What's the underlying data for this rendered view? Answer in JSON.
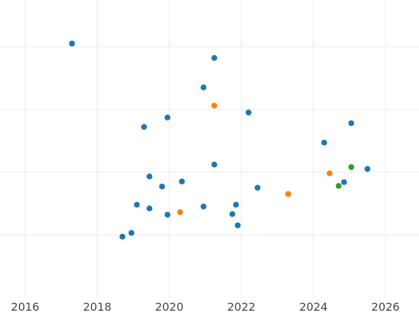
{
  "chart_data": {
    "type": "scatter",
    "title": "",
    "xlabel": "",
    "ylabel": "",
    "x_axis": "date (years)",
    "x_ticks": [
      2016,
      2018,
      2020,
      2022,
      2024,
      2026
    ],
    "xlim": [
      2016.0,
      2026.9
    ],
    "ylim": [
      0,
      4.7
    ],
    "y_gridlines": [
      1,
      2,
      3,
      4
    ],
    "y_tick_labels_shown": false,
    "grid": true,
    "legend": "none",
    "series": [
      {
        "color": "#1f77b4",
        "points": [
          {
            "x": 2017.3,
            "y": 4.05
          },
          {
            "x": 2021.25,
            "y": 3.82
          },
          {
            "x": 2020.95,
            "y": 3.35
          },
          {
            "x": 2022.2,
            "y": 2.95
          },
          {
            "x": 2019.95,
            "y": 2.87
          },
          {
            "x": 2019.3,
            "y": 2.72
          },
          {
            "x": 2025.05,
            "y": 2.78
          },
          {
            "x": 2024.3,
            "y": 2.47
          },
          {
            "x": 2021.25,
            "y": 2.12
          },
          {
            "x": 2025.5,
            "y": 2.05
          },
          {
            "x": 2019.45,
            "y": 1.93
          },
          {
            "x": 2020.35,
            "y": 1.85
          },
          {
            "x": 2024.85,
            "y": 1.84
          },
          {
            "x": 2019.8,
            "y": 1.77
          },
          {
            "x": 2022.45,
            "y": 1.75
          },
          {
            "x": 2019.1,
            "y": 1.48
          },
          {
            "x": 2020.95,
            "y": 1.45
          },
          {
            "x": 2021.85,
            "y": 1.48
          },
          {
            "x": 2019.45,
            "y": 1.42
          },
          {
            "x": 2019.95,
            "y": 1.32
          },
          {
            "x": 2021.75,
            "y": 1.33
          },
          {
            "x": 2021.9,
            "y": 1.15
          },
          {
            "x": 2018.95,
            "y": 1.03
          },
          {
            "x": 2018.7,
            "y": 0.97
          }
        ]
      },
      {
        "color": "#ff7f0e",
        "points": [
          {
            "x": 2021.25,
            "y": 3.06
          },
          {
            "x": 2024.45,
            "y": 1.98
          },
          {
            "x": 2023.3,
            "y": 1.65
          },
          {
            "x": 2020.3,
            "y": 1.36
          }
        ]
      },
      {
        "color": "#2ca02c",
        "points": [
          {
            "x": 2025.05,
            "y": 2.08
          },
          {
            "x": 2024.7,
            "y": 1.78
          }
        ]
      }
    ]
  }
}
